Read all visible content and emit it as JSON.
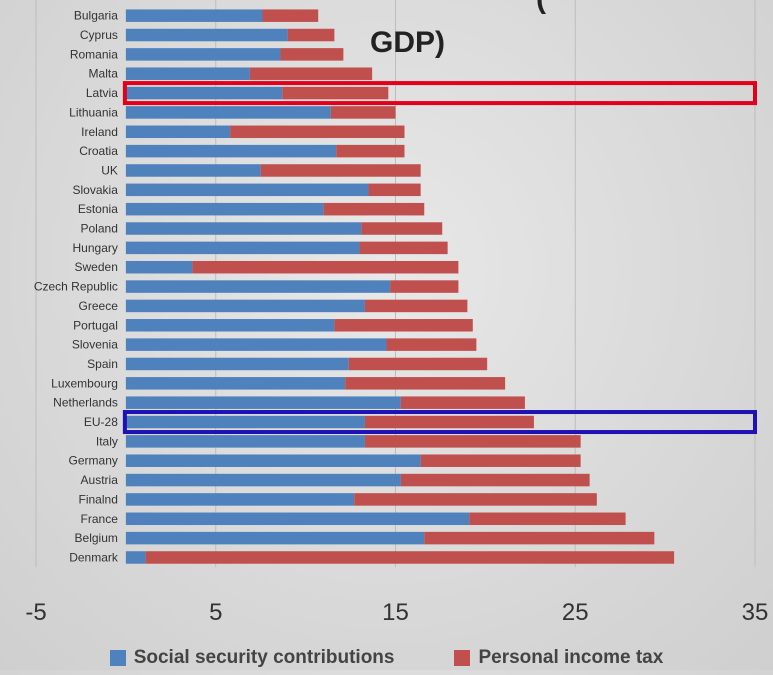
{
  "title_fragment": "GDP)",
  "title_fragment_top": "(",
  "colors": {
    "social": "#4f81bd",
    "income": "#c0504d",
    "highlight_red": "#e3001b",
    "highlight_blue": "#1f12b5",
    "grid": "#bdbdbd",
    "label": "#333333"
  },
  "chart_data": {
    "type": "bar",
    "orientation": "horizontal",
    "stacked": true,
    "categories": [
      "Bulgaria",
      "Cyprus",
      "Romania",
      "Malta",
      "Latvia",
      "Lithuania",
      "Ireland",
      "Croatia",
      "UK",
      "Slovakia",
      "Estonia",
      "Poland",
      "Hungary",
      "Sweden",
      "Czech Republic",
      "Greece",
      "Portugal",
      "Slovenia",
      "Spain",
      "Luxembourg",
      "Netherlands",
      "EU-28",
      "Italy",
      "Germany",
      "Austria",
      "Finalnd",
      "France",
      "Belgium",
      "Denmark"
    ],
    "series": [
      {
        "name": "Social security contributions",
        "color": "#4f81bd",
        "values": [
          7.6,
          9.0,
          8.6,
          6.9,
          8.7,
          11.4,
          5.8,
          11.7,
          7.5,
          13.5,
          11.0,
          13.1,
          13.0,
          3.7,
          14.7,
          13.3,
          11.6,
          14.5,
          12.4,
          12.2,
          15.3,
          13.3,
          13.3,
          16.4,
          15.3,
          12.7,
          19.1,
          16.6,
          1.1
        ]
      },
      {
        "name": "Personal income tax",
        "color": "#c0504d",
        "values": [
          3.1,
          2.6,
          3.5,
          6.8,
          5.9,
          3.6,
          9.7,
          3.8,
          8.9,
          2.9,
          5.6,
          4.5,
          4.9,
          14.8,
          3.8,
          5.7,
          7.7,
          5.0,
          7.7,
          8.9,
          6.9,
          9.4,
          12.0,
          8.9,
          10.5,
          13.5,
          8.7,
          12.8,
          29.4
        ]
      }
    ],
    "xlim": [
      -5,
      35
    ],
    "xticks": [
      -5,
      5,
      15,
      25,
      35
    ],
    "xtick_labels": [
      "-5",
      "5",
      "15",
      "25",
      "35"
    ],
    "grid": true,
    "legend": {
      "position": "bottom",
      "labels": [
        "Social security contributions",
        "Personal income tax"
      ]
    },
    "highlights": [
      {
        "category": "Latvia",
        "color": "red"
      },
      {
        "category": "EU-28",
        "color": "blue"
      }
    ]
  }
}
